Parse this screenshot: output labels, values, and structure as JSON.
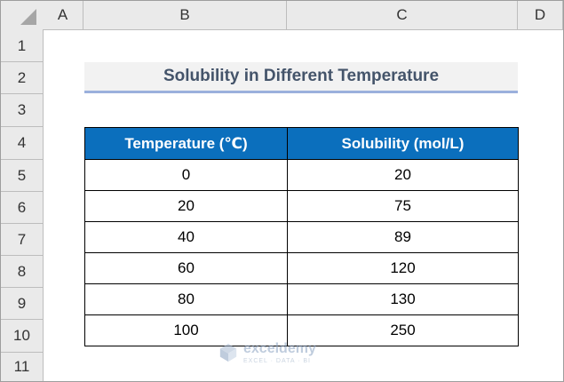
{
  "columns": [
    "A",
    "B",
    "C",
    "D"
  ],
  "rows": [
    "1",
    "2",
    "3",
    "4",
    "5",
    "6",
    "7",
    "8",
    "9",
    "10",
    "11"
  ],
  "title": "Solubility in Different Temperature",
  "table": {
    "headers": [
      "Temperature (℃)",
      "Solubility (mol/L)"
    ],
    "rows": [
      [
        "0",
        "20"
      ],
      [
        "20",
        "75"
      ],
      [
        "40",
        "89"
      ],
      [
        "60",
        "120"
      ],
      [
        "80",
        "130"
      ],
      [
        "100",
        "250"
      ]
    ]
  },
  "watermark": {
    "name": "exceldemy",
    "tagline": "EXCEL · DATA · BI"
  },
  "colors": {
    "header_bg": "#0b6fbd",
    "title_text": "#44546a",
    "title_underline": "#9bb0dc"
  }
}
